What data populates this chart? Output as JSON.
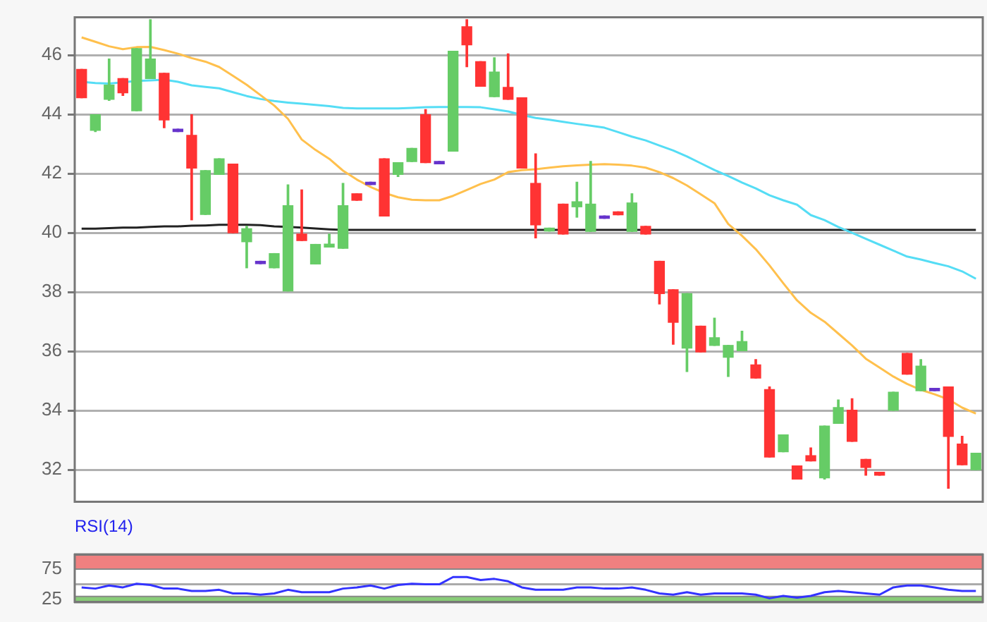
{
  "chart_data": [
    {
      "type": "candlestick",
      "categories": [
        null,
        null,
        null,
        null,
        null,
        null,
        null,
        null,
        null,
        null,
        null,
        null,
        null,
        null,
        null,
        null,
        null,
        null,
        null,
        null,
        null,
        null,
        null,
        null,
        null,
        null,
        null,
        null,
        null,
        null,
        null,
        null,
        null,
        null,
        null,
        null,
        null,
        null,
        null,
        null,
        null,
        null,
        null,
        null,
        null,
        null,
        null,
        null,
        null,
        null,
        null,
        null,
        null,
        null,
        null,
        null,
        null,
        null,
        null,
        null,
        null,
        null,
        null,
        null,
        null,
        null
      ],
      "ohlc": [
        [
          45.52,
          45.52,
          44.56,
          44.56
        ],
        [
          43.46,
          43.99,
          43.42,
          43.99
        ],
        [
          44.51,
          45.87,
          44.47,
          44.99
        ],
        [
          45.21,
          45.21,
          44.64,
          44.73
        ],
        [
          44.12,
          46.22,
          44.12,
          46.22
        ],
        [
          45.21,
          47.2,
          45.21,
          45.87
        ],
        [
          45.39,
          45.39,
          43.55,
          43.81
        ],
        [
          43.5,
          43.5,
          43.42,
          43.42
        ],
        [
          43.29,
          43.99,
          40.44,
          42.19
        ],
        [
          40.62,
          42.1,
          40.62,
          42.1
        ],
        [
          41.97,
          42.5,
          41.97,
          42.5
        ],
        [
          42.32,
          42.32,
          40.0,
          40.0
        ],
        [
          39.7,
          40.22,
          38.82,
          40.14
        ],
        [
          39.04,
          39.04,
          38.96,
          38.96
        ],
        [
          38.82,
          39.3,
          38.82,
          39.3
        ],
        [
          38.04,
          41.62,
          38.04,
          40.92
        ],
        [
          39.96,
          41.45,
          39.74,
          39.74
        ],
        [
          38.95,
          39.61,
          38.95,
          39.61
        ],
        [
          39.52,
          39.96,
          39.52,
          39.62
        ],
        [
          39.48,
          41.67,
          39.48,
          40.92
        ],
        [
          41.32,
          41.32,
          41.1,
          41.1
        ],
        [
          41.71,
          41.71,
          41.63,
          41.63
        ],
        [
          42.5,
          42.5,
          40.57,
          40.57
        ],
        [
          41.97,
          42.37,
          41.9,
          42.37
        ],
        [
          42.41,
          42.85,
          42.41,
          42.85
        ],
        [
          43.99,
          44.16,
          42.37,
          42.37
        ],
        [
          42.41,
          42.41,
          42.33,
          42.33
        ],
        [
          42.76,
          46.13,
          42.76,
          46.13
        ],
        [
          46.96,
          47.2,
          45.61,
          46.35
        ],
        [
          45.78,
          45.78,
          44.95,
          44.95
        ],
        [
          44.6,
          45.91,
          44.6,
          45.43
        ],
        [
          44.91,
          46.04,
          44.51,
          44.51
        ],
        [
          44.56,
          44.56,
          42.19,
          42.19
        ],
        [
          41.67,
          42.67,
          39.83,
          40.27
        ],
        [
          40.06,
          40.16,
          40.06,
          40.16
        ],
        [
          40.97,
          40.97,
          39.96,
          39.96
        ],
        [
          40.88,
          41.71,
          40.53,
          41.05
        ],
        [
          40.05,
          42.41,
          40.05,
          40.97
        ],
        [
          40.57,
          40.57,
          40.49,
          40.49
        ],
        [
          40.71,
          40.71,
          40.61,
          40.61
        ],
        [
          40.05,
          41.32,
          40.05,
          41.01
        ],
        [
          40.22,
          40.22,
          39.96,
          39.96
        ],
        [
          39.04,
          39.04,
          37.6,
          37.95
        ],
        [
          38.08,
          38.08,
          36.24,
          36.98
        ],
        [
          36.11,
          37.95,
          35.32,
          37.95
        ],
        [
          36.85,
          36.85,
          35.98,
          35.98
        ],
        [
          36.2,
          37.12,
          36.2,
          36.46
        ],
        [
          35.8,
          36.2,
          35.15,
          36.2
        ],
        [
          36.02,
          36.68,
          36.02,
          36.33
        ],
        [
          35.54,
          35.72,
          35.1,
          35.1
        ],
        [
          34.71,
          34.8,
          32.43,
          32.43
        ],
        [
          32.61,
          33.18,
          32.61,
          33.18
        ],
        [
          32.13,
          32.13,
          31.69,
          31.69
        ],
        [
          32.48,
          32.74,
          32.3,
          32.3
        ],
        [
          31.73,
          33.48,
          31.69,
          33.48
        ],
        [
          33.57,
          34.36,
          33.57,
          34.1
        ],
        [
          34.01,
          34.4,
          32.96,
          32.96
        ],
        [
          32.35,
          32.35,
          31.82,
          32.08
        ],
        [
          31.92,
          31.92,
          31.82,
          31.82
        ],
        [
          34.01,
          34.62,
          34.01,
          34.62
        ],
        [
          35.93,
          35.93,
          35.23,
          35.23
        ],
        [
          34.67,
          35.72,
          34.67,
          35.5
        ],
        [
          34.75,
          34.75,
          34.67,
          34.67
        ],
        [
          34.8,
          34.8,
          31.38,
          33.13
        ],
        [
          32.87,
          33.13,
          32.17,
          32.17
        ],
        [
          32.0,
          32.56,
          32.0,
          32.56
        ]
      ],
      "colors": [
        "#ff3333",
        "#66cc66",
        "#66cc66",
        "#ff3333",
        "#66cc66",
        "#66cc66",
        "#ff3333",
        "#6633cc",
        "#ff3333",
        "#66cc66",
        "#66cc66",
        "#ff3333",
        "#66cc66",
        "#6633cc",
        "#66cc66",
        "#66cc66",
        "#ff3333",
        "#66cc66",
        "#66cc66",
        "#66cc66",
        "#ff3333",
        "#6633cc",
        "#ff3333",
        "#66cc66",
        "#66cc66",
        "#ff3333",
        "#6633cc",
        "#66cc66",
        "#ff3333",
        "#ff3333",
        "#66cc66",
        "#ff3333",
        "#ff3333",
        "#ff3333",
        "#66cc66",
        "#ff3333",
        "#66cc66",
        "#66cc66",
        "#6633cc",
        "#ff3333",
        "#66cc66",
        "#ff3333",
        "#ff3333",
        "#ff3333",
        "#66cc66",
        "#ff3333",
        "#66cc66",
        "#66cc66",
        "#66cc66",
        "#ff3333",
        "#ff3333",
        "#66cc66",
        "#ff3333",
        "#ff3333",
        "#66cc66",
        "#66cc66",
        "#ff3333",
        "#ff3333",
        "#ff3333",
        "#66cc66",
        "#ff3333",
        "#66cc66",
        "#6633cc",
        "#ff3333",
        "#ff3333",
        "#66cc66"
      ],
      "series": [
        {
          "type": "line",
          "color": "#ffc04d",
          "values": [
            46.6,
            46.45,
            46.3,
            46.2,
            46.27,
            46.28,
            46.17,
            46.05,
            45.9,
            45.78,
            45.6,
            45.3,
            45.0,
            44.65,
            44.3,
            43.85,
            43.15,
            42.8,
            42.5,
            42.1,
            41.8,
            41.55,
            41.35,
            41.2,
            41.12,
            41.1,
            41.1,
            41.25,
            41.45,
            41.65,
            41.8,
            42.05,
            42.12,
            42.15,
            42.2,
            42.25,
            42.28,
            42.3,
            42.32,
            42.3,
            42.27,
            42.2,
            42.05,
            41.85,
            41.6,
            41.3,
            41.0,
            40.3,
            39.9,
            39.45,
            38.9,
            38.3,
            37.72,
            37.3,
            37.0,
            36.6,
            36.2,
            35.75,
            35.45,
            35.15,
            34.9,
            34.7,
            34.55,
            34.38,
            34.1,
            33.9
          ]
        },
        {
          "type": "line",
          "color": "#55ddf5",
          "values": [
            45.1,
            45.06,
            45.04,
            45.08,
            45.13,
            45.15,
            45.17,
            45.1,
            44.98,
            44.93,
            44.88,
            44.75,
            44.62,
            44.52,
            44.45,
            44.4,
            44.36,
            44.32,
            44.28,
            44.22,
            44.2,
            44.2,
            44.2,
            44.2,
            44.22,
            44.24,
            44.25,
            44.25,
            44.25,
            44.24,
            44.17,
            44.1,
            43.98,
            43.88,
            43.82,
            43.75,
            43.68,
            43.62,
            43.55,
            43.4,
            43.25,
            43.12,
            42.95,
            42.78,
            42.58,
            42.35,
            42.12,
            41.92,
            41.7,
            41.5,
            41.27,
            41.1,
            40.95,
            40.6,
            40.43,
            40.2,
            40.0,
            39.8,
            39.6,
            39.4,
            39.2,
            39.1,
            38.98,
            38.87,
            38.7,
            38.45
          ]
        },
        {
          "type": "line",
          "color": "#222222",
          "values": [
            40.14,
            40.14,
            40.16,
            40.18,
            40.18,
            40.2,
            40.22,
            40.22,
            40.24,
            40.25,
            40.27,
            40.27,
            40.27,
            40.26,
            40.22,
            40.2,
            40.18,
            40.15,
            40.12,
            40.1,
            40.1,
            40.1,
            40.1,
            40.1,
            40.1,
            40.1,
            40.1,
            40.1,
            40.1,
            40.1,
            40.1,
            40.1,
            40.1,
            40.1,
            40.1,
            40.1,
            40.1,
            40.1,
            40.1,
            40.1,
            40.1,
            40.1,
            40.1,
            40.1,
            40.1,
            40.1,
            40.1,
            40.1,
            40.1,
            40.1,
            40.1,
            40.1,
            40.1,
            40.1,
            40.1,
            40.1,
            40.1,
            40.1,
            40.1,
            40.1,
            40.1,
            40.1,
            40.1,
            40.1,
            40.1,
            40.1
          ]
        }
      ],
      "ylim": [
        30.9,
        47.3
      ],
      "yticks": [
        32,
        34,
        36,
        38,
        40,
        42,
        44,
        46
      ],
      "grid": "y",
      "tick_labels": "y",
      "marker": "none"
    },
    {
      "type": "line",
      "title": "RSI(14)",
      "categories": [
        null,
        null,
        null,
        null,
        null,
        null,
        null,
        null,
        null,
        null,
        null,
        null,
        null,
        null,
        null,
        null,
        null,
        null,
        null,
        null,
        null,
        null,
        null,
        null,
        null,
        null,
        null,
        null,
        null,
        null,
        null,
        null,
        null,
        null,
        null,
        null,
        null,
        null,
        null,
        null,
        null,
        null,
        null,
        null,
        null,
        null,
        null,
        null,
        null,
        null,
        null,
        null,
        null,
        null,
        null,
        null,
        null,
        null,
        null,
        null,
        null,
        null,
        null,
        null,
        null,
        null
      ],
      "series": [
        {
          "color": "#3333ff",
          "values": [
            45,
            43,
            48,
            45,
            51,
            49,
            43,
            43,
            39,
            39,
            41,
            35,
            35,
            33,
            35,
            41,
            37,
            37,
            37,
            43,
            45,
            48,
            43,
            49,
            51,
            50,
            50,
            62,
            62,
            57,
            59,
            55,
            45,
            41,
            41,
            41,
            45,
            45,
            43,
            43,
            45,
            41,
            35,
            33,
            37,
            33,
            35,
            35,
            35,
            33,
            27,
            31,
            28,
            31,
            37,
            39,
            37,
            35,
            33,
            45,
            48,
            48,
            45,
            41,
            39,
            39
          ]
        }
      ],
      "bands": [
        {
          "axis": "y",
          "from": 75,
          "to": 100,
          "color": "#f08080"
        },
        {
          "axis": "y",
          "from": 20,
          "to": 30,
          "color": "#88cc77"
        }
      ],
      "ref_lines": [
        {
          "axis": "y",
          "value": 50,
          "color": "#aaaaaa"
        }
      ],
      "ylim": [
        20,
        100
      ],
      "yticks": [
        25,
        75
      ],
      "tick_labels": "y",
      "marker": "none"
    }
  ]
}
